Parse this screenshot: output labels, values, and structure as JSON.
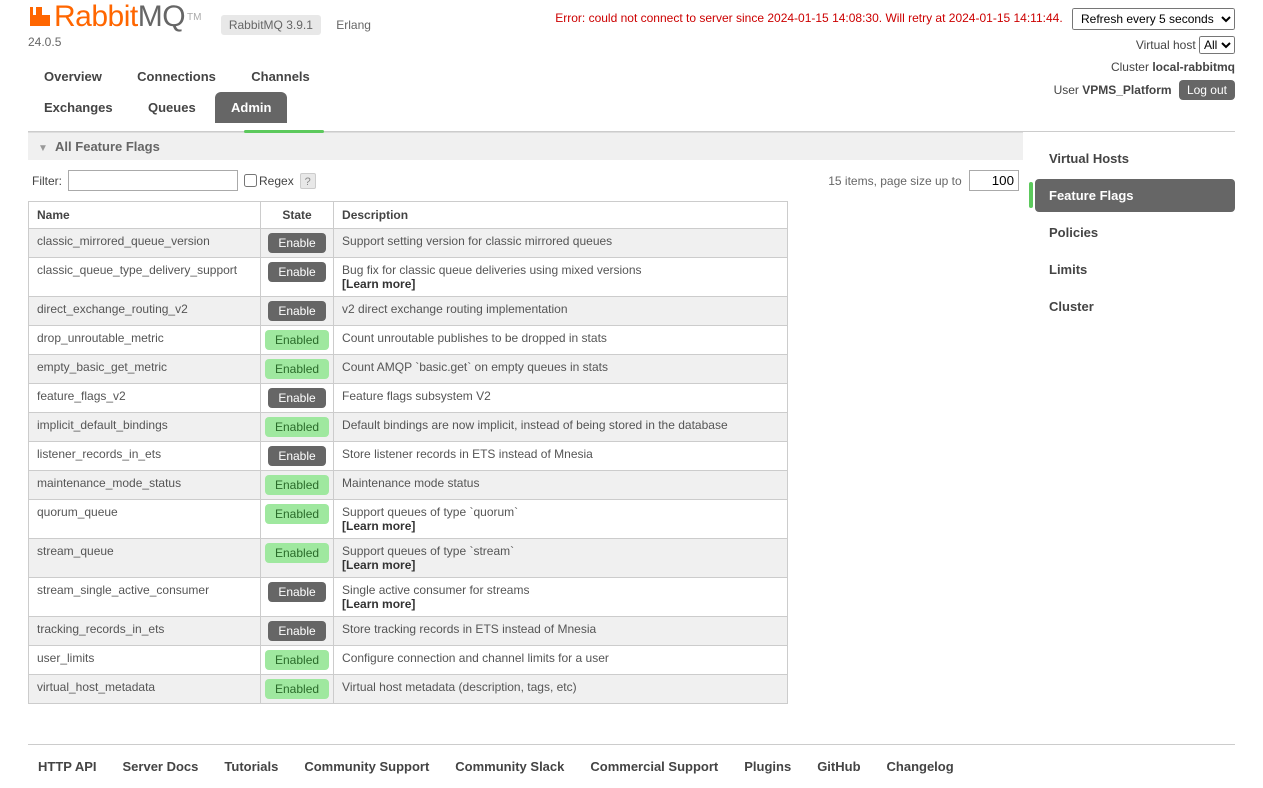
{
  "error_message": "Error: could not connect to server since 2024-01-15 14:08:30. Will retry at 2024-01-15 14:11:44.",
  "refresh_option": "Refresh every 5 seconds",
  "virtual_host_label": "Virtual host",
  "virtual_host_value": "All",
  "cluster_label": "Cluster",
  "cluster_name": "local-rabbitmq",
  "user_label": "User",
  "user_name": "VPMS_Platform",
  "logout_label": "Log out",
  "logo_rabbit": "Rabbit",
  "logo_mq": "MQ",
  "logo_tm": "TM",
  "version_badge": "RabbitMQ 3.9.1",
  "erlang_label": "Erlang",
  "erlang_version": "24.0.5",
  "tabs_row1": [
    "Overview",
    "Connections",
    "Channels"
  ],
  "tabs_row2": [
    "Exchanges",
    "Queues",
    "Admin"
  ],
  "section_title": "All Feature Flags",
  "filter_label": "Filter:",
  "regex_label": "Regex",
  "help_char": "?",
  "items_text": "15 items, page size up to",
  "page_size": "100",
  "col_name": "Name",
  "col_state": "State",
  "col_desc": "Description",
  "enable_label": "Enable",
  "enabled_label": "Enabled",
  "learn_more": "[Learn more]",
  "sidebar": [
    "Virtual Hosts",
    "Feature Flags",
    "Policies",
    "Limits",
    "Cluster"
  ],
  "footer_links": [
    "HTTP API",
    "Server Docs",
    "Tutorials",
    "Community Support",
    "Community Slack",
    "Commercial Support",
    "Plugins",
    "GitHub",
    "Changelog"
  ],
  "flags": [
    {
      "name": "classic_mirrored_queue_version",
      "state": "enable",
      "desc": "Support setting version for classic mirrored queues",
      "learn": false
    },
    {
      "name": "classic_queue_type_delivery_support",
      "state": "enable",
      "desc": "Bug fix for classic queue deliveries using mixed versions",
      "learn": true
    },
    {
      "name": "direct_exchange_routing_v2",
      "state": "enable",
      "desc": "v2 direct exchange routing implementation",
      "learn": false
    },
    {
      "name": "drop_unroutable_metric",
      "state": "enabled",
      "desc": "Count unroutable publishes to be dropped in stats",
      "learn": false
    },
    {
      "name": "empty_basic_get_metric",
      "state": "enabled",
      "desc": "Count AMQP `basic.get` on empty queues in stats",
      "learn": false
    },
    {
      "name": "feature_flags_v2",
      "state": "enable",
      "desc": "Feature flags subsystem V2",
      "learn": false
    },
    {
      "name": "implicit_default_bindings",
      "state": "enabled",
      "desc": "Default bindings are now implicit, instead of being stored in the database",
      "learn": false
    },
    {
      "name": "listener_records_in_ets",
      "state": "enable",
      "desc": "Store listener records in ETS instead of Mnesia",
      "learn": false
    },
    {
      "name": "maintenance_mode_status",
      "state": "enabled",
      "desc": "Maintenance mode status",
      "learn": false
    },
    {
      "name": "quorum_queue",
      "state": "enabled",
      "desc": "Support queues of type `quorum`",
      "learn": true
    },
    {
      "name": "stream_queue",
      "state": "enabled",
      "desc": "Support queues of type `stream`",
      "learn": true
    },
    {
      "name": "stream_single_active_consumer",
      "state": "enable",
      "desc": "Single active consumer for streams",
      "learn": true
    },
    {
      "name": "tracking_records_in_ets",
      "state": "enable",
      "desc": "Store tracking records in ETS instead of Mnesia",
      "learn": false
    },
    {
      "name": "user_limits",
      "state": "enabled",
      "desc": "Configure connection and channel limits for a user",
      "learn": false
    },
    {
      "name": "virtual_host_metadata",
      "state": "enabled",
      "desc": "Virtual host metadata (description, tags, etc)",
      "learn": false
    }
  ]
}
